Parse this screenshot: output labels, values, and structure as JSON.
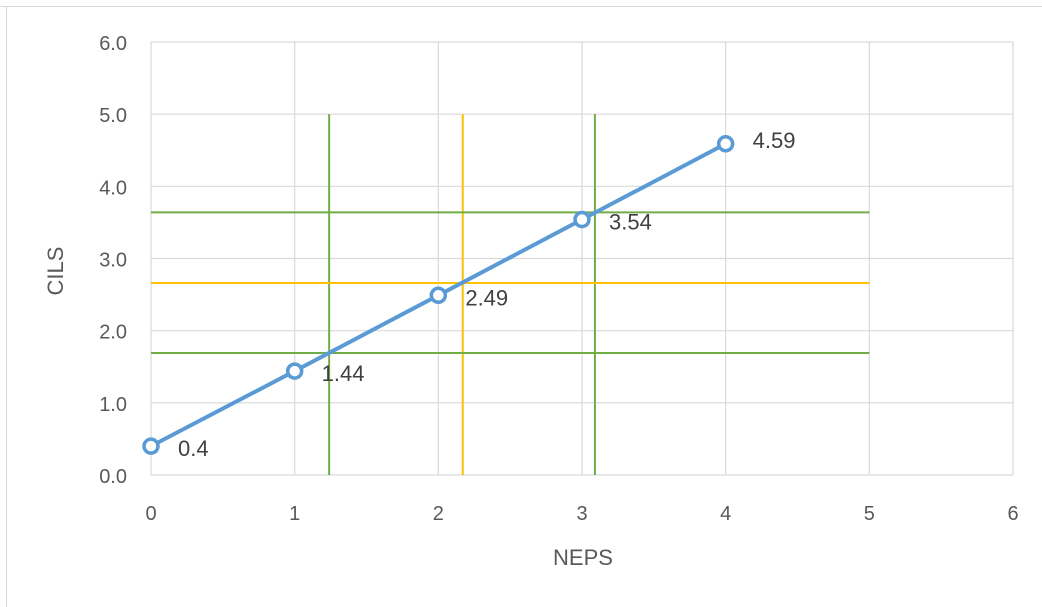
{
  "chart_data": {
    "type": "line",
    "xlabel": "NEPS",
    "ylabel": "CILS",
    "xlim": [
      0,
      6
    ],
    "ylim": [
      0,
      6
    ],
    "x_ticks": [
      "0",
      "1",
      "2",
      "3",
      "4",
      "5",
      "6"
    ],
    "y_ticks": [
      "0.0",
      "1.0",
      "2.0",
      "3.0",
      "4.0",
      "5.0",
      "6.0"
    ],
    "grid": true,
    "series": [
      {
        "x": [
          0,
          1,
          2,
          3,
          4
        ],
        "y": [
          0.4,
          1.44,
          2.49,
          3.54,
          4.59
        ],
        "labels": [
          "0.4",
          "1.44",
          "2.49",
          "3.54",
          "4.59"
        ],
        "color": "#5b9bd5"
      }
    ],
    "reference_lines": {
      "vertical": [
        {
          "x": 1.24,
          "color": "#70ad47"
        },
        {
          "x": 2.17,
          "color": "#ffc000"
        },
        {
          "x": 3.09,
          "color": "#70ad47"
        }
      ],
      "horizontal": [
        {
          "y": 1.69,
          "color": "#70ad47"
        },
        {
          "y": 2.66,
          "color": "#ffc000"
        },
        {
          "y": 3.64,
          "color": "#70ad47"
        }
      ],
      "vertical_y_range": [
        0,
        5
      ],
      "horizontal_x_range": [
        0,
        5
      ]
    }
  }
}
